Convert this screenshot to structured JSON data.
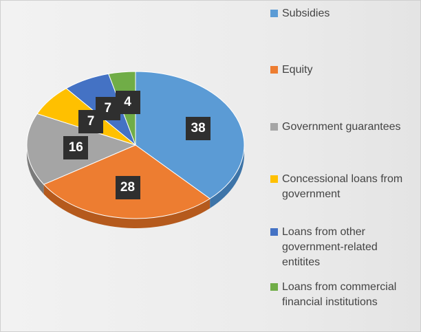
{
  "chart_data": {
    "type": "pie",
    "style": "3d",
    "legend_position": "right",
    "slices": [
      {
        "label": "Subsidies",
        "value": 38,
        "color": "#5b9bd5",
        "side_color": "#3d74a8"
      },
      {
        "label": "Equity",
        "value": 28,
        "color": "#ed7d31",
        "side_color": "#b55a1d"
      },
      {
        "label": "Government guarantees",
        "value": 16,
        "color": "#a5a5a5",
        "side_color": "#7b7b7b"
      },
      {
        "label": "Concessional loans from government",
        "value": 7,
        "color": "#ffc000",
        "side_color": "#c49300"
      },
      {
        "label": "Loans from other government-related entitites",
        "value": 7,
        "color": "#4472c4",
        "side_color": "#2f5597"
      },
      {
        "label": "Loans from commercial financial institutions",
        "value": 4,
        "color": "#70ad47",
        "side_color": "#507e33"
      }
    ],
    "data_labels": [
      "38",
      "28",
      "16",
      "7",
      "7",
      "4"
    ],
    "legend_entries": [
      "Subsidies",
      "Equity",
      "Government guarantees",
      "Concessional loans from government",
      "Loans from other government-related entitites",
      "Loans from commercial financial institutions"
    ]
  }
}
